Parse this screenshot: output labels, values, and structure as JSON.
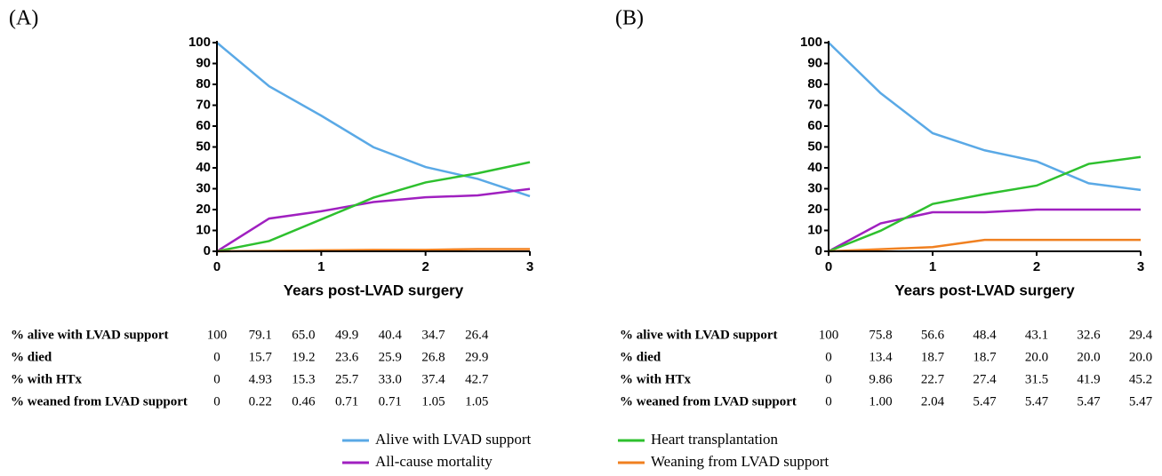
{
  "chart_data": [
    {
      "type": "line",
      "title": "(A)",
      "xlabel": "Years post-LVAD surgery",
      "x": [
        0,
        0.5,
        1,
        1.5,
        2,
        2.5,
        3
      ],
      "xlim": [
        0,
        3
      ],
      "xticks": [
        0,
        1,
        2,
        3
      ],
      "ylim": [
        0,
        100
      ],
      "yticks": [
        0,
        10,
        20,
        30,
        40,
        50,
        60,
        70,
        80,
        90,
        100
      ],
      "series": [
        {
          "name": "Alive with LVAD support",
          "row_label": "% alive with LVAD support",
          "color": "#5aa9e6",
          "values": [
            100,
            79.1,
            65.0,
            49.9,
            40.4,
            34.7,
            26.4
          ],
          "value_labels": [
            "100",
            "79.1",
            "65.0",
            "49.9",
            "40.4",
            "34.7",
            "26.4"
          ]
        },
        {
          "name": "All-cause mortality",
          "row_label": "% died",
          "color": "#a020c0",
          "values": [
            0,
            15.7,
            19.2,
            23.6,
            25.9,
            26.8,
            29.9
          ],
          "value_labels": [
            "0",
            "15.7",
            "19.2",
            "23.6",
            "25.9",
            "26.8",
            "29.9"
          ]
        },
        {
          "name": "Heart transplantation",
          "row_label": "% with HTx",
          "color": "#2ec02e",
          "values": [
            0,
            4.93,
            15.3,
            25.7,
            33.0,
            37.4,
            42.7
          ],
          "value_labels": [
            "0",
            "4.93",
            "15.3",
            "25.7",
            "33.0",
            "37.4",
            "42.7"
          ]
        },
        {
          "name": "Weaning from LVAD support",
          "row_label": "% weaned from LVAD support",
          "color": "#f08020",
          "values": [
            0,
            0.22,
            0.46,
            0.71,
            0.71,
            1.05,
            1.05
          ],
          "value_labels": [
            "0",
            "0.22",
            "0.46",
            "0.71",
            "0.71",
            "1.05",
            "1.05"
          ]
        }
      ]
    },
    {
      "type": "line",
      "title": "(B)",
      "xlabel": "Years post-LVAD surgery",
      "x": [
        0,
        0.5,
        1,
        1.5,
        2,
        2.5,
        3
      ],
      "xlim": [
        0,
        3
      ],
      "xticks": [
        0,
        1,
        2,
        3
      ],
      "ylim": [
        0,
        100
      ],
      "yticks": [
        0,
        10,
        20,
        30,
        40,
        50,
        60,
        70,
        80,
        90,
        100
      ],
      "series": [
        {
          "row_label": "% alive with LVAD support",
          "color": "#5aa9e6",
          "values": [
            100,
            75.8,
            56.6,
            48.4,
            43.1,
            32.6,
            29.4
          ],
          "value_labels": [
            "100",
            "75.8",
            "56.6",
            "48.4",
            "43.1",
            "32.6",
            "29.4"
          ]
        },
        {
          "row_label": "% died",
          "color": "#a020c0",
          "values": [
            0,
            13.4,
            18.7,
            18.7,
            20.0,
            20.0,
            20.0
          ],
          "value_labels": [
            "0",
            "13.4",
            "18.7",
            "18.7",
            "20.0",
            "20.0",
            "20.0"
          ]
        },
        {
          "row_label": "% with HTx",
          "color": "#2ec02e",
          "values": [
            0,
            9.86,
            22.7,
            27.4,
            31.5,
            41.9,
            45.2
          ],
          "value_labels": [
            "0",
            "9.86",
            "22.7",
            "27.4",
            "31.5",
            "41.9",
            "45.2"
          ]
        },
        {
          "row_label": "% weaned from LVAD support",
          "color": "#f08020",
          "values": [
            0,
            1.0,
            2.04,
            5.47,
            5.47,
            5.47,
            5.47
          ],
          "value_labels": [
            "0",
            "1.00",
            "2.04",
            "5.47",
            "5.47",
            "5.47",
            "5.47"
          ]
        }
      ]
    }
  ]
}
